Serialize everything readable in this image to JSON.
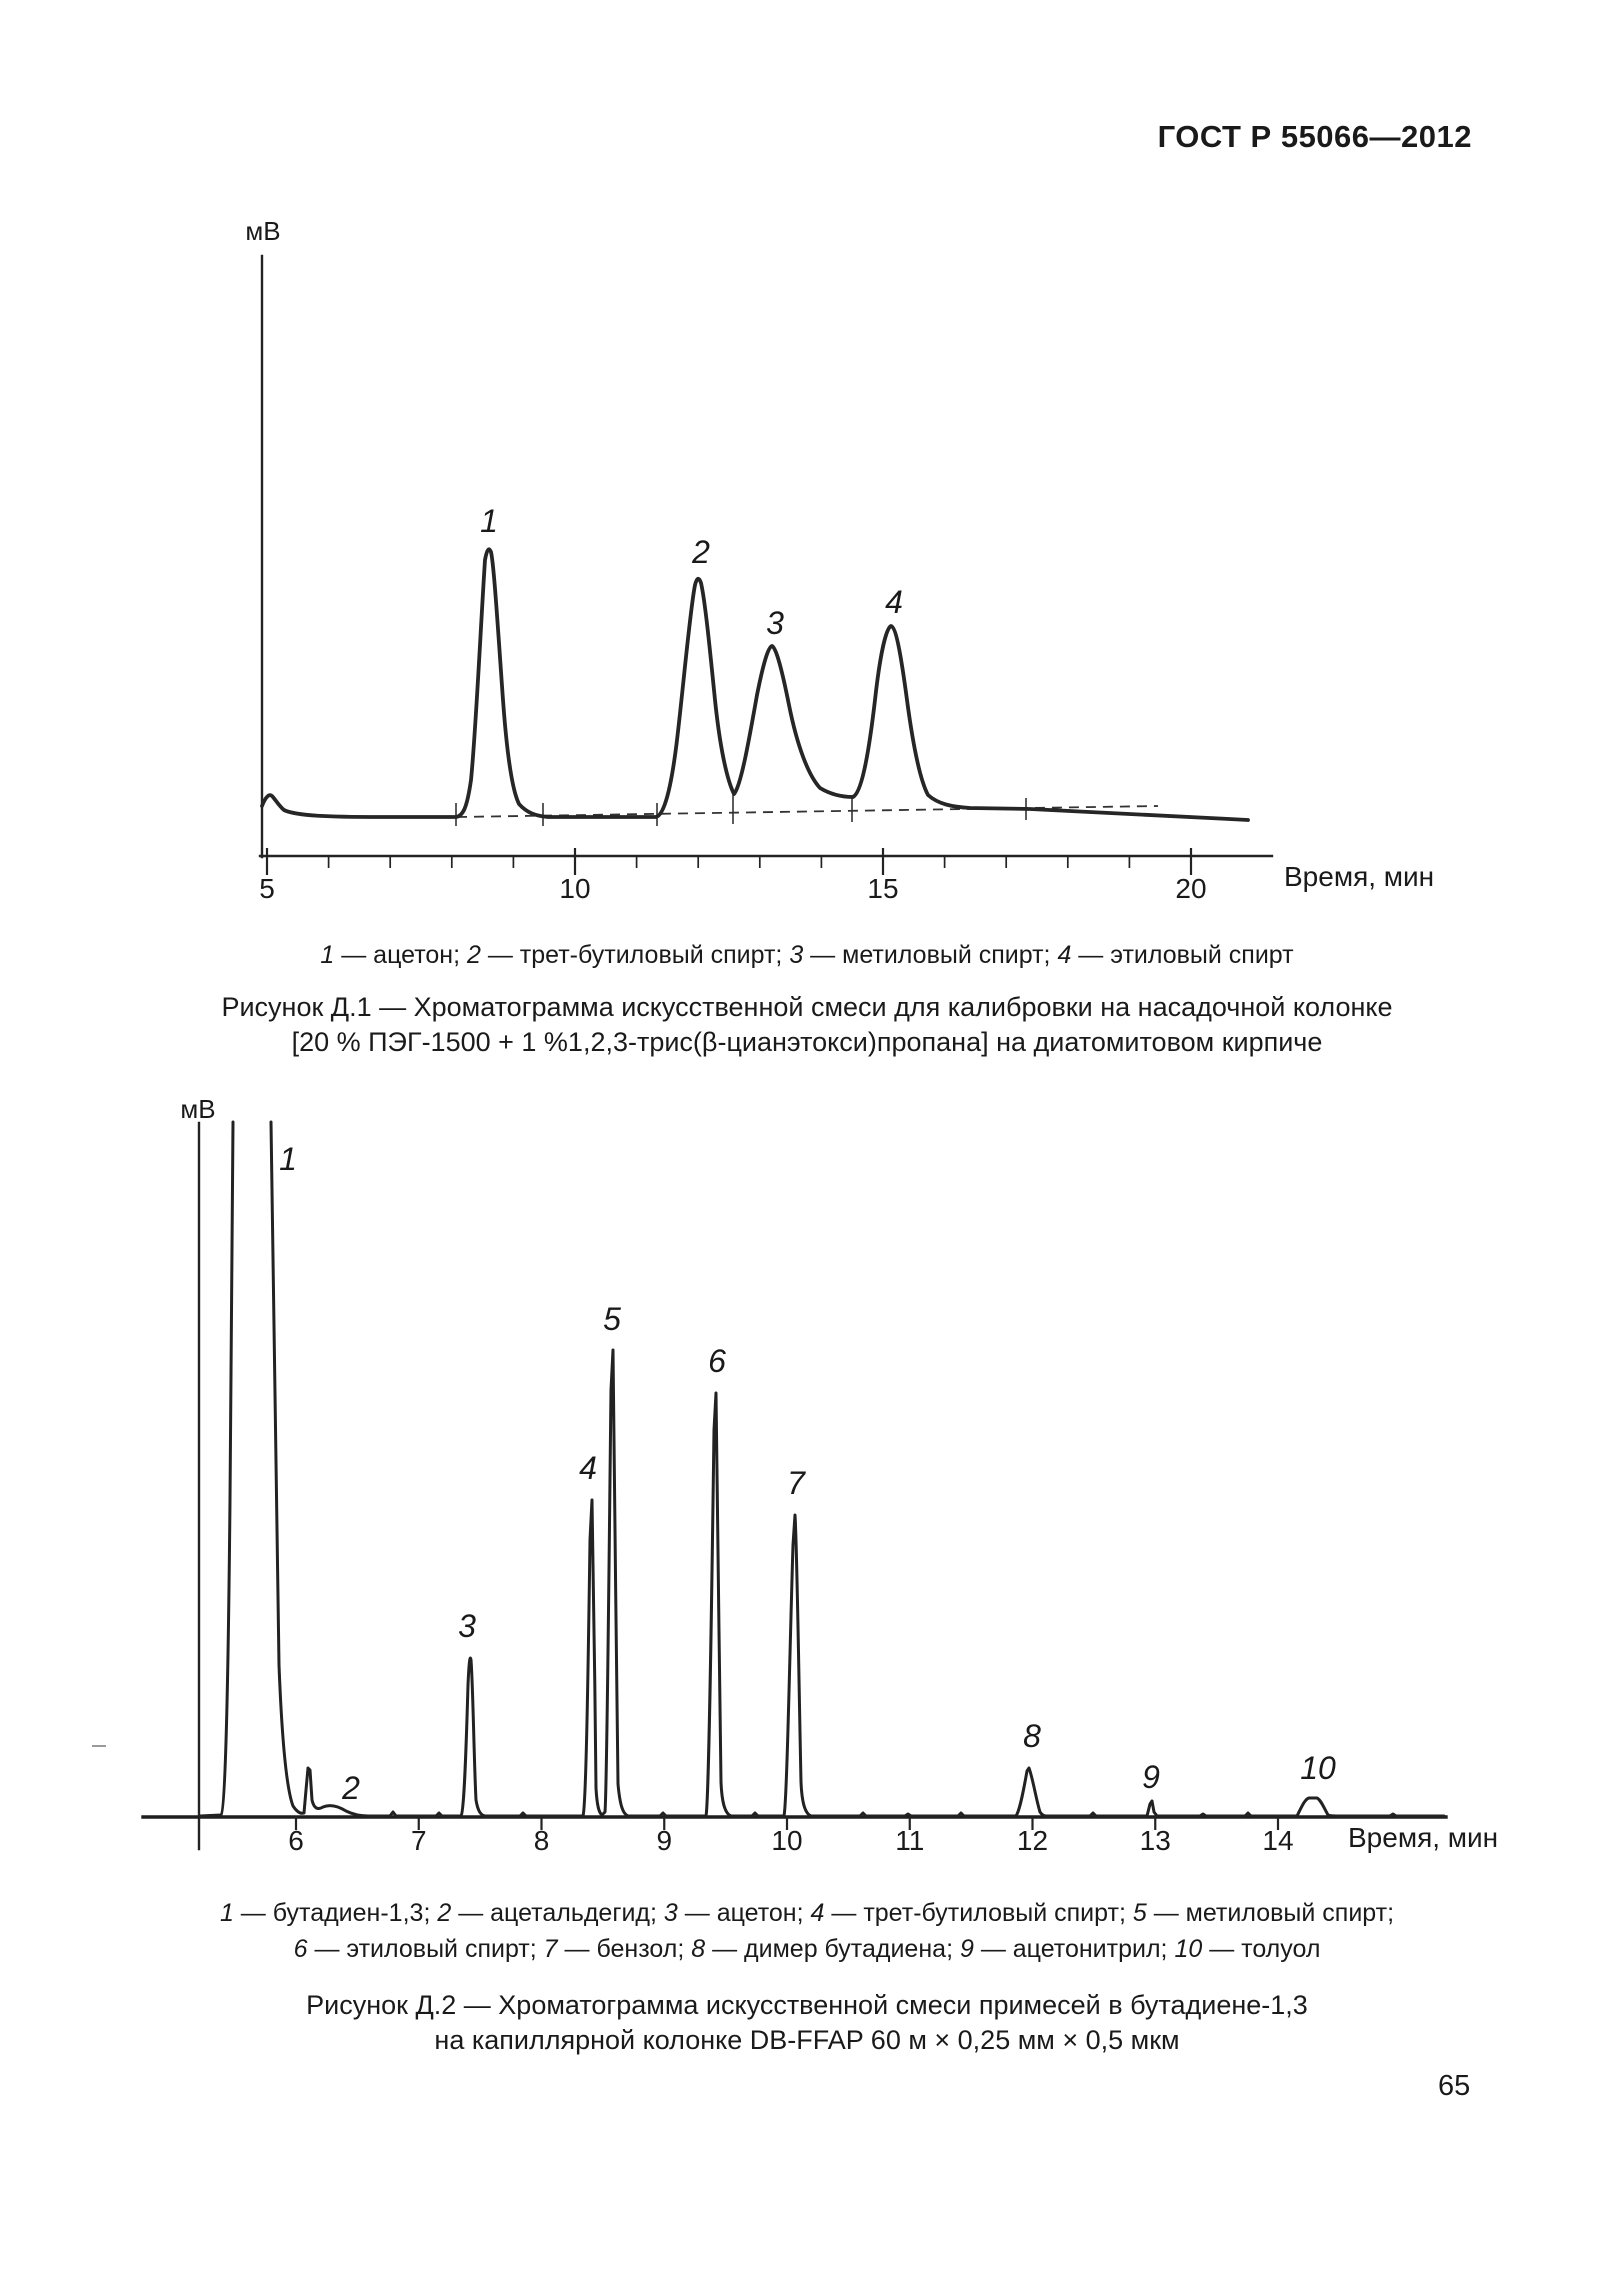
{
  "page": {
    "header": "ГОСТ Р 55066—2012",
    "number": "65"
  },
  "separators": {
    "dash": " — ",
    "item": "; "
  },
  "fig1": {
    "y_unit": "мВ",
    "x_label": "Время, мин",
    "x_ticks": [
      "5",
      "10",
      "15",
      "20"
    ],
    "peak_labels": [
      "1",
      "2",
      "3",
      "4"
    ],
    "legend_items": [
      {
        "num": "1",
        "name": "ацетон"
      },
      {
        "num": "2",
        "name": "трет-бутиловый спирт"
      },
      {
        "num": "3",
        "name": "метиловый спирт"
      },
      {
        "num": "4",
        "name": "этиловый спирт"
      }
    ],
    "caption_line1": "Рисунок Д.1 — Хроматограмма искусственной смеси для калибровки на насадочной колонке",
    "caption_line2": "[20 % ПЭГ-1500 + 1 %1,2,3-трис(β-цианэтокси)пропана] на диатомитовом кирпиче"
  },
  "fig2": {
    "y_unit": "мВ",
    "x_label": "Время, мин",
    "x_ticks": [
      "6",
      "7",
      "8",
      "9",
      "10",
      "11",
      "12",
      "13",
      "14"
    ],
    "peak_labels": [
      "1",
      "2",
      "3",
      "4",
      "5",
      "6",
      "7",
      "8",
      "9",
      "10"
    ],
    "legend_items": [
      {
        "num": "1",
        "name": "бутадиен-1,3"
      },
      {
        "num": "2",
        "name": "ацетальдегид"
      },
      {
        "num": "3",
        "name": "ацетон"
      },
      {
        "num": "4",
        "name": "трет-бутиловый спирт"
      },
      {
        "num": "5",
        "name": "метиловый спирт"
      },
      {
        "num": "6",
        "name": "этиловый спирт"
      },
      {
        "num": "7",
        "name": "бензол"
      },
      {
        "num": "8",
        "name": "димер бутадиена"
      },
      {
        "num": "9",
        "name": "ацетонитрил"
      },
      {
        "num": "10",
        "name": "толуол"
      }
    ],
    "caption_line1": "Рисунок Д.2 — Хроматограмма искусственной смеси примесей в бутадиене-1,3",
    "caption_line2": "на капиллярной колонке DB-FFAP 60 м × 0,25 мм × 0,5 мкм"
  },
  "chart_data": [
    {
      "type": "line",
      "title": "Рисунок Д.1 — Хроматограмма искусственной смеси для калибровки на насадочной колонке [20 % ПЭГ-1500 + 1 %1,2,3-трис(β-цианэтокси)пропана] на диатомитовом кирпиче",
      "xlabel": "Время, мин",
      "ylabel": "мВ",
      "x_ticks": [
        5,
        10,
        15,
        20
      ],
      "xlim": [
        5,
        20.5
      ],
      "grid": false,
      "baseline": "dashed drift line under peaks from ~8.1 to ~17.3 min with start/end tick markers at 8.1, 9.5, 11.3, 12.6, 14.5 and 17.3 min",
      "peaks": [
        {
          "label": "1",
          "name": "ацетон",
          "retention_min": 8.6,
          "height_rel": 1.0
        },
        {
          "label": "2",
          "name": "трет-бутиловый спирт",
          "retention_min": 12.0,
          "height_rel": 0.89
        },
        {
          "label": "3",
          "name": "метиловый спирт",
          "retention_min": 13.2,
          "height_rel": 0.64
        },
        {
          "label": "4",
          "name": "этиловый спирт",
          "retention_min": 15.1,
          "height_rel": 0.71
        }
      ]
    },
    {
      "type": "line",
      "title": "Рисунок Д.2 — Хроматограмма искусственной смеси примесей в бутадиене-1,3 на капиллярной колонке DB-FFAP 60 м × 0,25 мм × 0,5 мкм",
      "xlabel": "Время, мин",
      "ylabel": "мВ",
      "x_ticks": [
        6,
        7,
        8,
        9,
        10,
        11,
        12,
        13,
        14
      ],
      "xlim": [
        5.2,
        14.8
      ],
      "grid": false,
      "peaks": [
        {
          "label": "1",
          "name": "бутадиен-1,3",
          "retention_min": 5.65,
          "height_rel": 1.0,
          "clipped": true
        },
        {
          "label": "2",
          "name": "ацетальдегид",
          "retention_min": 6.1,
          "height_rel": 0.07
        },
        {
          "label": "3",
          "name": "ацетон",
          "retention_min": 7.4,
          "height_rel": 0.22
        },
        {
          "label": "4",
          "name": "трет-бутиловый спирт",
          "retention_min": 8.4,
          "height_rel": 0.44
        },
        {
          "label": "5",
          "name": "метиловый спирт",
          "retention_min": 8.6,
          "height_rel": 0.64
        },
        {
          "label": "6",
          "name": "этиловый спирт",
          "retention_min": 9.4,
          "height_rel": 0.58
        },
        {
          "label": "7",
          "name": "бензол",
          "retention_min": 10.1,
          "height_rel": 0.41
        },
        {
          "label": "8",
          "name": "димер бутадиена",
          "retention_min": 12.0,
          "height_rel": 0.07
        },
        {
          "label": "9",
          "name": "ацетонитрил",
          "retention_min": 13.0,
          "height_rel": 0.02
        },
        {
          "label": "10",
          "name": "толуол",
          "retention_min": 14.3,
          "height_rel": 0.03
        }
      ]
    }
  ]
}
